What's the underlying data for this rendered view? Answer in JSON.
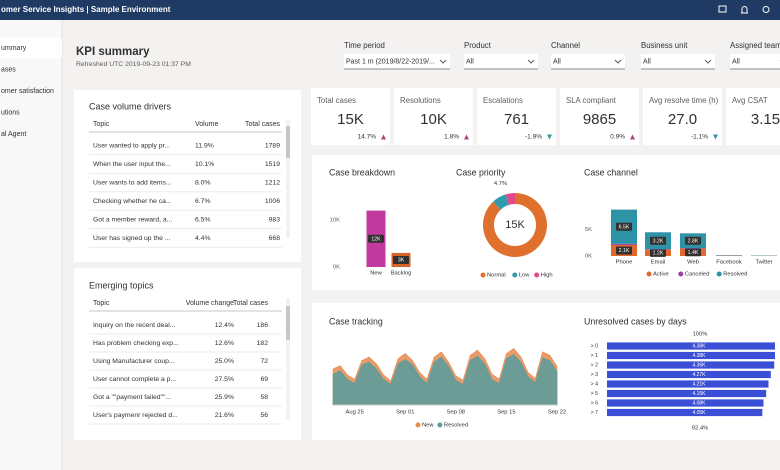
{
  "app": {
    "title": "omer Service Insights | Sample Environment"
  },
  "nav": [
    "ummary",
    "ases",
    "omer satisfaction",
    "utions",
    "al Agent"
  ],
  "header": {
    "title": "KPI summary",
    "refreshed": "Refreshed UTC 2019-09-23 01:37 PM"
  },
  "filters": [
    {
      "label": "Time period",
      "value": "Past 1 m (2019/8/22-2019/..."
    },
    {
      "label": "Product",
      "value": "All"
    },
    {
      "label": "Channel",
      "value": "All"
    },
    {
      "label": "Business unit",
      "value": "All"
    },
    {
      "label": "Assigned team",
      "value": "All"
    }
  ],
  "kpis": [
    {
      "label": "Total cases",
      "value": "15K",
      "change": "14.7%",
      "trend": "up"
    },
    {
      "label": "Resolutions",
      "value": "10K",
      "change": "1.8%",
      "trend": "up"
    },
    {
      "label": "Escalations",
      "value": "761",
      "change": "-1.9%",
      "trend": "down"
    },
    {
      "label": "SLA compliant",
      "value": "9865",
      "change": "0.9%",
      "trend": "up"
    },
    {
      "label": "Avg resolve time (h)",
      "value": "27.0",
      "change": "-1.1%",
      "trend": "down"
    },
    {
      "label": "Avg CSAT",
      "value": "3.15"
    }
  ],
  "volume_drivers": {
    "title": "Case volume drivers",
    "columns": [
      "Topic",
      "Volume",
      "Total cases"
    ],
    "rows": [
      [
        "User wanted to apply pr...",
        "11.9%",
        "1789"
      ],
      [
        "When the user input the...",
        "10.1%",
        "1519"
      ],
      [
        "User wants to add items...",
        "8.0%",
        "1212"
      ],
      [
        "Checking whether he ca...",
        "6.7%",
        "1006"
      ],
      [
        "Got a member reward, a...",
        "6.5%",
        "983"
      ],
      [
        "User has signed up the ...",
        "4.4%",
        "668"
      ]
    ]
  },
  "emerging_topics": {
    "title": "Emerging topics",
    "columns": [
      "Topic",
      "Volume change",
      "Total cases"
    ],
    "rows": [
      [
        "Inquiry on the recent deal...",
        "12.4%",
        "186"
      ],
      [
        "Has problem checking exp...",
        "12.6%",
        "182"
      ],
      [
        "Using Manufacturer coup...",
        "25.0%",
        "72"
      ],
      [
        "User cannot complete a p...",
        "27.5%",
        "69"
      ],
      [
        "Got a \"\"payment failed\"\"...",
        "25.9%",
        "58"
      ],
      [
        "User's paymenr rejected d...",
        "21.6%",
        "56"
      ]
    ]
  },
  "chart_data": [
    {
      "type": "bar",
      "title": "Case breakdown",
      "categories": [
        "New",
        "Backlog"
      ],
      "values": [
        12000,
        3000
      ],
      "value_labels": [
        "12K",
        "3K"
      ],
      "colors": [
        "#c2399f",
        "#d8642a"
      ],
      "ylim": [
        0,
        15000
      ],
      "yticks": [
        {
          "value": 0,
          "label": "0K"
        },
        {
          "value": 10000,
          "label": "10K"
        }
      ]
    },
    {
      "type": "pie",
      "title": "Case priority",
      "center_label": "15K",
      "donut": true,
      "categories": [
        "Normal",
        "Low",
        "High"
      ],
      "values": [
        88,
        7.3,
        4.7
      ],
      "value_labels": [
        null,
        null,
        "4.7%"
      ],
      "colors": [
        "#e0702e",
        "#2f9bab",
        "#e2488c"
      ]
    },
    {
      "type": "stacked_bar",
      "title": "Case channel",
      "categories": [
        "Phone",
        "Email",
        "Web",
        "Facebook",
        "Twitter"
      ],
      "series": [
        {
          "name": "Active",
          "color": "#e0692b",
          "values": [
            2100,
            1200,
            1400,
            60,
            40
          ],
          "value_labels": [
            "2.1K",
            "1.2K",
            "1.4K",
            null,
            null
          ]
        },
        {
          "name": "Canceled",
          "color": "#9a3fa6",
          "values": [
            200,
            100,
            100,
            20,
            10
          ],
          "value_labels": [
            null,
            null,
            null,
            null,
            null
          ]
        },
        {
          "name": "Resolved",
          "color": "#2f93a7",
          "values": [
            6500,
            3200,
            2800,
            80,
            60
          ],
          "value_labels": [
            "6.5K",
            "3.2K",
            "2.8K",
            null,
            null
          ]
        }
      ],
      "ylim": [
        0,
        11000
      ],
      "yticks": [
        {
          "value": 0,
          "label": "0K"
        },
        {
          "value": 5000,
          "label": "5K"
        }
      ]
    },
    {
      "type": "area",
      "title": "Case tracking",
      "x": [
        null,
        null,
        null,
        "Aug 25",
        null,
        null,
        null,
        null,
        null,
        null,
        "Sep 01",
        null,
        null,
        null,
        null,
        null,
        null,
        "Sep 08",
        null,
        null,
        null,
        null,
        null,
        null,
        "Sep 15",
        null,
        null,
        null,
        null,
        null,
        null,
        "Sep 22"
      ],
      "series": [
        {
          "name": "New",
          "color": "#e88a4e",
          "values": [
            420,
            460,
            350,
            300,
            520,
            560,
            480,
            350,
            280,
            540,
            600,
            520,
            380,
            300,
            560,
            620,
            500,
            340,
            290,
            580,
            640,
            540,
            360,
            300,
            600,
            660,
            560,
            380,
            310,
            620,
            580,
            450
          ]
        },
        {
          "name": "Resolved",
          "color": "#5f9c9c",
          "values": [
            360,
            400,
            300,
            250,
            470,
            500,
            420,
            300,
            240,
            480,
            530,
            470,
            330,
            250,
            500,
            560,
            450,
            290,
            240,
            520,
            570,
            480,
            300,
            250,
            540,
            590,
            500,
            330,
            260,
            550,
            520,
            390
          ]
        }
      ],
      "ylim": [
        0,
        700
      ]
    },
    {
      "type": "hbar",
      "title": "Unresolved cases by days",
      "categories": [
        "> 0",
        "> 1",
        "> 2",
        "> 3",
        "> 4",
        "> 5",
        "> 6",
        "> 7"
      ],
      "values": [
        4380,
        4380,
        4360,
        4270,
        4210,
        4150,
        4080,
        4050
      ],
      "value_labels": [
        "4.38K",
        "4.38K",
        "4.36K",
        "4.27K",
        "4.21K",
        "4.15K",
        "4.08K",
        "4.05K"
      ],
      "color": "#3a4fd6",
      "xlim": [
        0,
        4380
      ],
      "annotations": [
        "100%",
        "92.4%"
      ]
    }
  ]
}
